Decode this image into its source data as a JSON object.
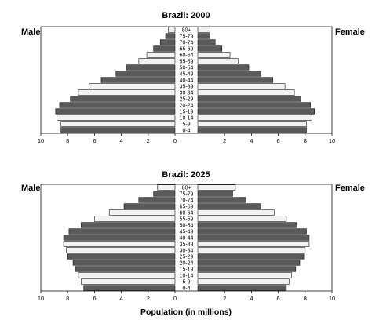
{
  "chart_data": [
    {
      "type": "bar",
      "orientation": "horizontal-population-pyramid",
      "title": "Brazil: 2000",
      "left_label": "Male",
      "right_label": "Female",
      "categories": [
        "0-4",
        "5-9",
        "10-14",
        "15-19",
        "20-24",
        "25-29",
        "30-34",
        "35-39",
        "40-44",
        "45-49",
        "50-54",
        "55-59",
        "60-64",
        "65-69",
        "70-74",
        "75-79",
        "80+"
      ],
      "series": [
        {
          "name": "Male",
          "values": [
            8.5,
            8.5,
            8.8,
            8.9,
            8.6,
            7.8,
            7.2,
            6.4,
            5.5,
            4.4,
            3.6,
            2.7,
            2.1,
            1.6,
            1.1,
            0.7,
            0.5
          ]
        },
        {
          "name": "Female",
          "values": [
            8.1,
            8.1,
            8.5,
            8.7,
            8.4,
            7.7,
            7.2,
            6.5,
            5.6,
            4.7,
            3.8,
            3.0,
            2.4,
            1.8,
            1.3,
            0.9,
            0.9
          ]
        }
      ],
      "xlim": [
        0,
        10
      ],
      "ticks": [
        "10",
        "8",
        "6",
        "4",
        "2",
        "0",
        "2",
        "4",
        "6",
        "8",
        "10"
      ],
      "grid": false
    },
    {
      "type": "bar",
      "orientation": "horizontal-population-pyramid",
      "title": "Brazil: 2025",
      "left_label": "Male",
      "right_label": "Female",
      "xlabel": "Population (in millions)",
      "categories": [
        "0-4",
        "5-9",
        "10-14",
        "15-19",
        "20-24",
        "25-29",
        "30-34",
        "35-39",
        "40-44",
        "45-49",
        "50-54",
        "55-59",
        "60-64",
        "65-69",
        "70-74",
        "75-79",
        "80+"
      ],
      "series": [
        {
          "name": "Male",
          "values": [
            6.8,
            7.0,
            7.2,
            7.4,
            7.6,
            8.0,
            8.1,
            8.3,
            8.3,
            7.9,
            7.0,
            6.0,
            4.9,
            3.8,
            2.7,
            1.6,
            1.3
          ]
        },
        {
          "name": "Female",
          "values": [
            6.6,
            6.8,
            7.0,
            7.3,
            7.6,
            7.9,
            8.0,
            8.3,
            8.3,
            8.1,
            7.4,
            6.6,
            5.7,
            4.7,
            3.6,
            2.6,
            2.8
          ]
        }
      ],
      "xlim": [
        0,
        10
      ],
      "ticks": [
        "10",
        "8",
        "6",
        "4",
        "2",
        "0",
        "2",
        "4",
        "6",
        "8",
        "10"
      ],
      "grid": false
    }
  ],
  "colors": {
    "band_light": "#f2f2f2",
    "band_mid": "#a8a8a8",
    "band_dark": "#5a5a5a",
    "outline": "#111111"
  }
}
